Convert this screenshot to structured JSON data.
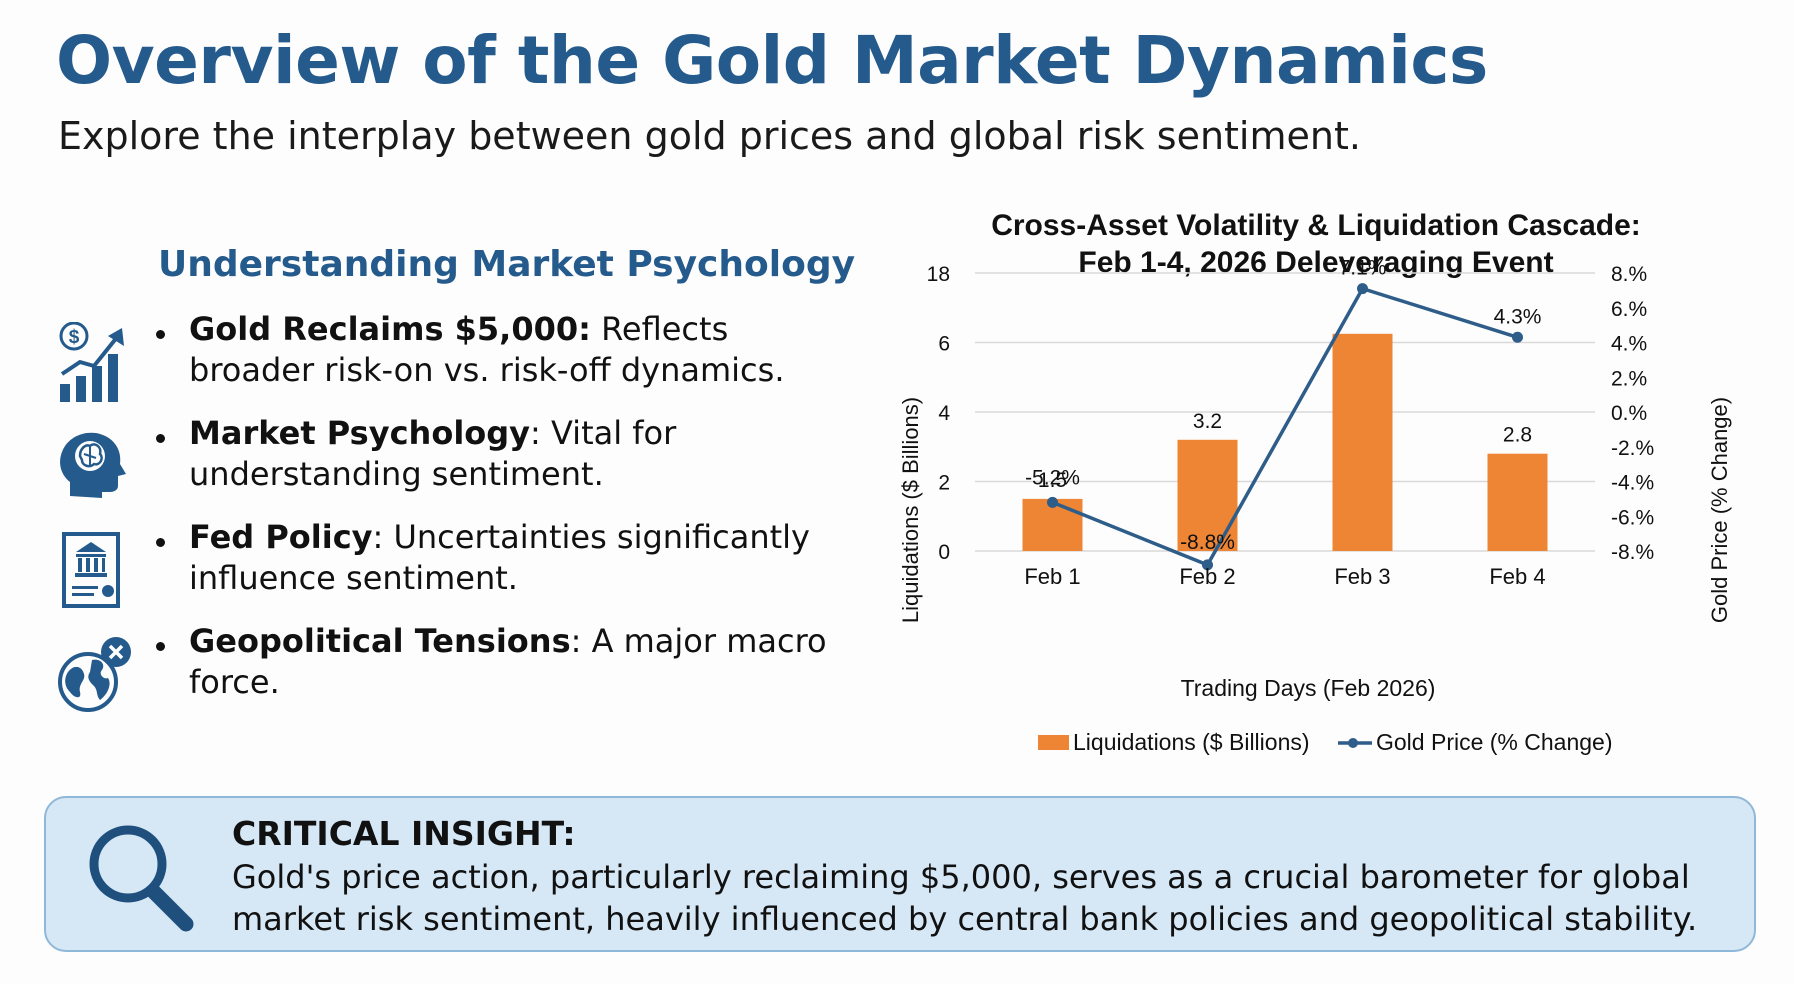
{
  "header": {
    "title": "Overview of the Gold Market Dynamics",
    "subtitle": "Explore the interplay between gold prices and global risk sentiment."
  },
  "left_panel": {
    "heading": "Understanding Market Psychology",
    "bullets": [
      {
        "icon": "dollar-growth-chart-icon",
        "bold": "Gold Reclaims $5,000:",
        "text": " Reflects broader risk-on vs. risk-off dynamics."
      },
      {
        "icon": "brain-head-icon",
        "bold": "Market Psychology",
        "text": ": Vital for understanding sentiment."
      },
      {
        "icon": "bank-document-icon",
        "bold": "Fed Policy",
        "text": ": Uncertainties significantly influence sentiment."
      },
      {
        "icon": "globe-tension-icon",
        "bold": "Geopolitical Tensions",
        "text": ": A major macro force."
      }
    ]
  },
  "chart_data": {
    "type": "bar",
    "title": "Cross-Asset Volatility & Liquidation Cascade:",
    "subtitle": "Feb 1-4, 2026 Deleveraging Event",
    "xlabel": "Trading Days (Feb 2026)",
    "ylabel": "Liquidations ($ Billions)",
    "y2label": "Gold Price (% Change)",
    "categories": [
      "Feb 1",
      "Feb 2",
      "Feb 3",
      "Feb 4"
    ],
    "y_ticks": [
      "18",
      "6",
      "4",
      "2",
      "0"
    ],
    "y2_ticks": [
      "8.%",
      "6.%",
      "4.%",
      "2.%",
      "0.%",
      "-2.%",
      "-4.%",
      "-6.%",
      "-8.%"
    ],
    "y2lim": [
      -8,
      8
    ],
    "series": [
      {
        "name": "Liquidations ($ Billions)",
        "type": "bar",
        "color": "#ed8535",
        "values": [
          1.5,
          3.2,
          7.5,
          2.8
        ],
        "labels": [
          "1.5",
          "3.2",
          "",
          "2.8"
        ]
      },
      {
        "name": "Gold Price (% Change)",
        "type": "line",
        "color": "#2e5d8a",
        "values": [
          -5.2,
          -8.8,
          7.1,
          4.3
        ],
        "labels": [
          "-5.2%",
          "-8.8%",
          "7.1%",
          "4.3%"
        ]
      }
    ],
    "legend": "bottom"
  },
  "insight": {
    "title": "CRITICAL INSIGHT:",
    "body": "Gold's price action, particularly reclaiming $5,000, serves as a crucial barometer for global market risk sentiment, heavily influenced by central bank policies and geopolitical stability.",
    "icon": "magnifier-icon"
  },
  "colors": {
    "accent": "#245a8c",
    "bar": "#ed8535",
    "line": "#2e5d8a",
    "insight_bg": "#d6e8f6"
  }
}
